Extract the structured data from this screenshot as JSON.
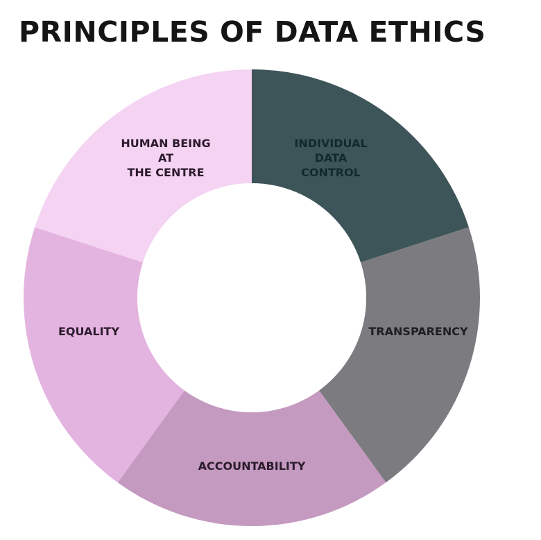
{
  "title": "PRINCIPLES OF DATA ETHICS",
  "segments": [
    {
      "name": "individual-data-control",
      "lines": [
        "INDIVIDUAL",
        "DATA",
        "CONTROL"
      ],
      "color": "#3d5458",
      "text_color": "#13292b"
    },
    {
      "name": "transparency",
      "lines": [
        "TRANSPARENCY"
      ],
      "color": "#7c7b80",
      "text_color": "#1e1e22"
    },
    {
      "name": "accountability",
      "lines": [
        "ACCOUNTABILITY"
      ],
      "color": "#c49ac0",
      "text_color": "#2b1b2c"
    },
    {
      "name": "equality",
      "lines": [
        "EQUALITY"
      ],
      "color": "#e4b4e0",
      "text_color": "#2b1b2c"
    },
    {
      "name": "human-being-at-the-centre",
      "lines": [
        "HUMAN BEING",
        "AT",
        "THE CENTRE"
      ],
      "color": "#f5d3f3",
      "text_color": "#2b1b2c"
    }
  ]
}
